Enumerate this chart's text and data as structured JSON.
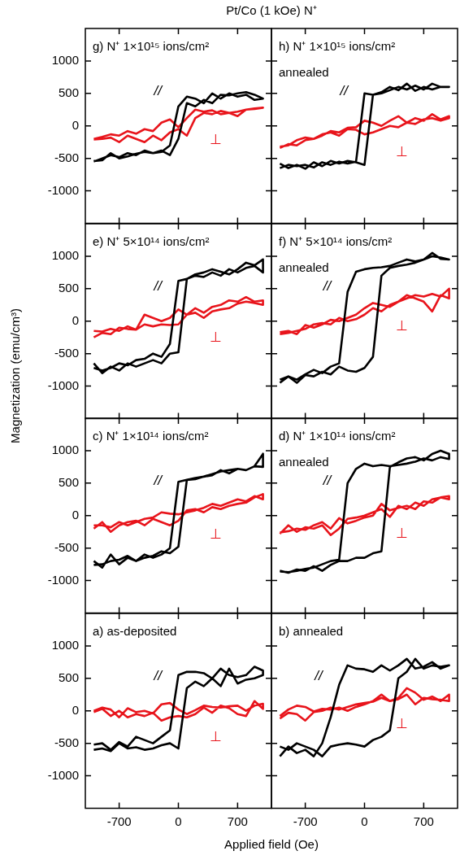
{
  "chart_data": [
    {
      "type": "line",
      "title": "Pt/Co (1 kOe) N⁺",
      "annotations": [
        "g) N⁺ 1×10¹⁵ ions/cm²"
      ],
      "tick_labels": "y",
      "grid": false,
      "legend": false,
      "marker": "none",
      "line_style": "solid",
      "xlim": [
        -1100,
        1100
      ],
      "xticks": [
        -700,
        0,
        700
      ],
      "ylim": [
        -1500,
        1500
      ],
      "yticks": [
        -1000,
        -500,
        0,
        500,
        1000
      ],
      "x": [
        -1000,
        -900,
        -800,
        -700,
        -600,
        -500,
        -400,
        -300,
        -200,
        -100,
        0,
        100,
        200,
        300,
        400,
        500,
        600,
        700,
        800,
        900,
        1000,
        1000,
        900,
        800,
        700,
        600,
        500,
        400,
        300,
        200,
        100,
        0,
        -100,
        -200,
        -300,
        -400,
        -500,
        -600,
        -700,
        -800,
        -900,
        -1000
      ],
      "series": [
        {
          "name": "//",
          "color": "#000000",
          "values": [
            -540,
            -530,
            -420,
            -500,
            -470,
            -430,
            -400,
            -420,
            -380,
            -450,
            -200,
            350,
            300,
            400,
            350,
            480,
            470,
            500,
            520,
            480,
            420,
            420,
            400,
            480,
            450,
            500,
            420,
            500,
            350,
            420,
            450,
            300,
            -300,
            -400,
            -420,
            -380,
            -450,
            -420,
            -480,
            -450,
            -500,
            -550
          ]
        },
        {
          "name": "⊥",
          "color": "#e8141b",
          "values": [
            -210,
            -200,
            -180,
            -250,
            -150,
            -200,
            -250,
            -150,
            -220,
            -100,
            -50,
            -150,
            120,
            200,
            180,
            230,
            200,
            150,
            250,
            270,
            280,
            280,
            260,
            250,
            220,
            200,
            180,
            240,
            220,
            250,
            120,
            -20,
            100,
            50,
            -80,
            -50,
            -120,
            -80,
            -150,
            -130,
            -170,
            -200
          ]
        }
      ]
    },
    {
      "type": "line",
      "annotations": [
        "h) N⁺ 1×10¹⁵ ions/cm²",
        "annealed"
      ],
      "tick_labels": false,
      "grid": false,
      "legend": false,
      "marker": "none",
      "line_style": "solid",
      "xlim": [
        -1100,
        1100
      ],
      "xticks": [
        -700,
        0,
        700
      ],
      "ylim": [
        -1500,
        1500
      ],
      "yticks": [
        -1000,
        -500,
        0,
        500,
        1000
      ],
      "x": [
        -1000,
        -900,
        -800,
        -700,
        -600,
        -500,
        -400,
        -300,
        -200,
        -100,
        0,
        100,
        200,
        300,
        400,
        500,
        600,
        700,
        800,
        900,
        1000,
        1000,
        900,
        800,
        700,
        600,
        500,
        400,
        300,
        200,
        100,
        0,
        -100,
        -200,
        -300,
        -400,
        -500,
        -600,
        -700,
        -800,
        -900,
        -1000
      ],
      "series": [
        {
          "name": "//",
          "color": "#000000",
          "values": [
            -580,
            -650,
            -600,
            -660,
            -560,
            -620,
            -540,
            -580,
            -540,
            -560,
            -600,
            480,
            500,
            550,
            600,
            560,
            620,
            560,
            650,
            600,
            600,
            600,
            600,
            560,
            600,
            540,
            650,
            550,
            600,
            520,
            480,
            500,
            -550,
            -580,
            -550,
            -600,
            -560,
            -640,
            -600,
            -620,
            -600,
            -650
          ]
        },
        {
          "name": "⊥",
          "color": "#e8141b",
          "values": [
            -340,
            -280,
            -300,
            -220,
            -200,
            -130,
            -100,
            -150,
            -50,
            -60,
            -130,
            -100,
            -50,
            0,
            -20,
            50,
            30,
            100,
            120,
            80,
            120,
            150,
            100,
            180,
            80,
            120,
            50,
            150,
            80,
            0,
            50,
            80,
            -20,
            -30,
            -100,
            -80,
            -150,
            -200,
            -180,
            -220,
            -300,
            -320
          ]
        }
      ]
    },
    {
      "type": "line",
      "ylabel": "Magnetization (emu/cm³)",
      "annotations": [
        "e) N⁺ 5×10¹⁴ ions/cm²"
      ],
      "tick_labels": "y",
      "grid": false,
      "legend": false,
      "marker": "none",
      "line_style": "solid",
      "xlim": [
        -1100,
        1100
      ],
      "xticks": [
        -700,
        0,
        700
      ],
      "ylim": [
        -1500,
        1500
      ],
      "yticks": [
        -1000,
        -500,
        0,
        500,
        1000
      ],
      "x": [
        -1000,
        -900,
        -800,
        -700,
        -600,
        -500,
        -400,
        -300,
        -200,
        -100,
        0,
        100,
        200,
        300,
        400,
        500,
        600,
        700,
        800,
        900,
        1000,
        1000,
        900,
        800,
        700,
        600,
        500,
        400,
        300,
        200,
        100,
        0,
        -100,
        -200,
        -300,
        -400,
        -500,
        -600,
        -700,
        -800,
        -900,
        -1000
      ],
      "series": [
        {
          "name": "//",
          "color": "#000000",
          "values": [
            -650,
            -800,
            -700,
            -760,
            -650,
            -700,
            -650,
            -600,
            -650,
            -500,
            -480,
            650,
            700,
            680,
            750,
            700,
            800,
            750,
            820,
            850,
            750,
            950,
            860,
            900,
            800,
            720,
            760,
            800,
            750,
            720,
            650,
            620,
            -350,
            -550,
            -500,
            -580,
            -600,
            -680,
            -650,
            -720,
            -760,
            -720
          ]
        },
        {
          "name": "⊥",
          "color": "#e8141b",
          "values": [
            -250,
            -180,
            -200,
            -100,
            -120,
            -130,
            -50,
            -80,
            -50,
            -60,
            -50,
            100,
            130,
            50,
            150,
            180,
            200,
            270,
            300,
            280,
            250,
            320,
            300,
            370,
            300,
            320,
            250,
            220,
            130,
            200,
            100,
            180,
            50,
            0,
            50,
            100,
            -130,
            -80,
            -150,
            -120,
            -160,
            -150
          ]
        }
      ]
    },
    {
      "type": "line",
      "annotations": [
        "f) N⁺ 5×10¹⁴ ions/cm²",
        "annealed"
      ],
      "tick_labels": false,
      "grid": false,
      "legend": false,
      "marker": "none",
      "line_style": "solid",
      "xlim": [
        -1100,
        1100
      ],
      "xticks": [
        -700,
        0,
        700
      ],
      "ylim": [
        -1500,
        1500
      ],
      "yticks": [
        -1000,
        -500,
        0,
        500,
        1000
      ],
      "x": [
        -1000,
        -900,
        -800,
        -700,
        -600,
        -500,
        -400,
        -300,
        -200,
        -100,
        0,
        100,
        200,
        300,
        400,
        500,
        600,
        700,
        800,
        900,
        1000,
        1000,
        900,
        800,
        700,
        600,
        500,
        400,
        300,
        200,
        100,
        0,
        -100,
        -200,
        -300,
        -400,
        -500,
        -600,
        -700,
        -800,
        -900,
        -1000
      ],
      "series": [
        {
          "name": "//",
          "color": "#000000",
          "values": [
            -950,
            -850,
            -950,
            -830,
            -850,
            -780,
            -820,
            -700,
            -760,
            -780,
            -720,
            -550,
            700,
            820,
            850,
            870,
            900,
            950,
            1050,
            960,
            950,
            950,
            980,
            1000,
            950,
            920,
            950,
            900,
            850,
            830,
            820,
            800,
            760,
            450,
            -650,
            -700,
            -800,
            -750,
            -820,
            -900,
            -850,
            -900
          ]
        },
        {
          "name": "⊥",
          "color": "#e8141b",
          "values": [
            -200,
            -180,
            -150,
            -120,
            -50,
            -30,
            -50,
            50,
            0,
            30,
            100,
            200,
            150,
            250,
            300,
            400,
            350,
            300,
            150,
            400,
            350,
            500,
            380,
            420,
            380,
            400,
            350,
            300,
            220,
            250,
            280,
            200,
            100,
            50,
            0,
            20,
            -50,
            -100,
            -60,
            -200,
            -150,
            -170
          ]
        }
      ]
    },
    {
      "type": "line",
      "annotations": [
        "c) N⁺ 1×10¹⁴ ions/cm²"
      ],
      "tick_labels": "y",
      "grid": false,
      "legend": false,
      "marker": "none",
      "line_style": "solid",
      "xlim": [
        -1100,
        1100
      ],
      "xticks": [
        -700,
        0,
        700
      ],
      "ylim": [
        -1500,
        1500
      ],
      "yticks": [
        -1000,
        -500,
        0,
        500,
        1000
      ],
      "x": [
        -1000,
        -900,
        -800,
        -700,
        -600,
        -500,
        -400,
        -300,
        -200,
        -100,
        0,
        100,
        200,
        300,
        400,
        500,
        600,
        700,
        800,
        900,
        1000,
        1000,
        900,
        800,
        700,
        600,
        500,
        400,
        300,
        200,
        100,
        0,
        -100,
        -200,
        -300,
        -400,
        -500,
        -600,
        -700,
        -800,
        -900,
        -1000
      ],
      "series": [
        {
          "name": "//",
          "color": "#000000",
          "values": [
            -700,
            -800,
            -600,
            -750,
            -650,
            -700,
            -650,
            -620,
            -550,
            -580,
            -480,
            550,
            580,
            600,
            640,
            680,
            700,
            720,
            700,
            760,
            950,
            750,
            760,
            700,
            720,
            650,
            700,
            620,
            600,
            560,
            550,
            520,
            -500,
            -600,
            -650,
            -600,
            -700,
            -620,
            -680,
            -700,
            -750,
            -760
          ]
        },
        {
          "name": "⊥",
          "color": "#e8141b",
          "values": [
            -200,
            -100,
            -250,
            -150,
            -100,
            -80,
            -150,
            -50,
            -100,
            -150,
            -80,
            80,
            100,
            50,
            130,
            100,
            150,
            180,
            200,
            280,
            330,
            250,
            300,
            220,
            250,
            200,
            150,
            180,
            120,
            80,
            50,
            20,
            30,
            50,
            -30,
            -50,
            -100,
            -150,
            -100,
            -180,
            -150,
            -150
          ]
        }
      ]
    },
    {
      "type": "line",
      "annotations": [
        "d) N⁺ 1×10¹⁴ ions/cm²",
        "annealed"
      ],
      "tick_labels": false,
      "grid": false,
      "legend": false,
      "marker": "none",
      "line_style": "solid",
      "xlim": [
        -1100,
        1100
      ],
      "xticks": [
        -700,
        0,
        700
      ],
      "ylim": [
        -1500,
        1500
      ],
      "yticks": [
        -1000,
        -500,
        0,
        500,
        1000
      ],
      "x": [
        -1000,
        -900,
        -800,
        -700,
        -600,
        -500,
        -400,
        -300,
        -200,
        -100,
        0,
        100,
        200,
        300,
        400,
        500,
        600,
        700,
        800,
        900,
        1000,
        1000,
        900,
        800,
        700,
        600,
        500,
        400,
        300,
        200,
        100,
        0,
        -100,
        -200,
        -300,
        -400,
        -500,
        -600,
        -700,
        -800,
        -900,
        -1000
      ],
      "series": [
        {
          "name": "//",
          "color": "#000000",
          "values": [
            -850,
            -880,
            -830,
            -850,
            -780,
            -850,
            -760,
            -700,
            -700,
            -650,
            -650,
            -580,
            -550,
            750,
            820,
            880,
            900,
            850,
            950,
            1000,
            950,
            870,
            900,
            850,
            880,
            830,
            800,
            780,
            760,
            780,
            760,
            800,
            720,
            500,
            -680,
            -700,
            -750,
            -800,
            -820,
            -850,
            -870,
            -860
          ]
        },
        {
          "name": "⊥",
          "color": "#e8141b",
          "values": [
            -280,
            -150,
            -250,
            -180,
            -200,
            -150,
            -300,
            -200,
            -50,
            -30,
            0,
            50,
            100,
            -20,
            150,
            100,
            200,
            150,
            250,
            280,
            300,
            250,
            280,
            200,
            220,
            100,
            150,
            120,
            80,
            180,
            0,
            -30,
            -80,
            -120,
            -40,
            -200,
            -100,
            -150,
            -220,
            -200,
            -240,
            -260
          ]
        }
      ]
    },
    {
      "type": "line",
      "xlabel": "Applied field (Oe)",
      "annotations": [
        "a) as-deposited"
      ],
      "grid": false,
      "legend": false,
      "marker": "none",
      "line_style": "solid",
      "xlim": [
        -1100,
        1100
      ],
      "xticks": [
        -700,
        0,
        700
      ],
      "ylim": [
        -1500,
        1500
      ],
      "yticks": [
        -1000,
        -500,
        0,
        500,
        1000
      ],
      "x": [
        -1000,
        -900,
        -800,
        -700,
        -600,
        -500,
        -400,
        -300,
        -200,
        -100,
        0,
        100,
        200,
        300,
        400,
        500,
        600,
        700,
        800,
        900,
        1000,
        1000,
        900,
        800,
        700,
        600,
        500,
        400,
        300,
        200,
        100,
        0,
        -100,
        -200,
        -300,
        -400,
        -500,
        -600,
        -700,
        -800,
        -900,
        -1000
      ],
      "series": [
        {
          "name": "//",
          "color": "#000000",
          "values": [
            -600,
            -580,
            -620,
            -500,
            -580,
            -560,
            -600,
            -580,
            -530,
            -500,
            -580,
            350,
            450,
            380,
            500,
            380,
            650,
            420,
            480,
            500,
            550,
            620,
            680,
            550,
            520,
            550,
            650,
            500,
            580,
            600,
            600,
            550,
            -300,
            -400,
            -500,
            -450,
            -400,
            -550,
            -480,
            -600,
            -500,
            -520
          ]
        },
        {
          "name": "⊥",
          "color": "#e8141b",
          "values": [
            -20,
            30,
            -80,
            0,
            -100,
            -50,
            -80,
            -30,
            -150,
            -100,
            -80,
            -100,
            -50,
            50,
            -30,
            80,
            40,
            -50,
            -80,
            150,
            30,
            110,
            80,
            0,
            80,
            70,
            50,
            60,
            80,
            10,
            -50,
            20,
            120,
            100,
            -40,
            0,
            -20,
            40,
            -100,
            20,
            50,
            0
          ]
        }
      ]
    },
    {
      "type": "line",
      "annotations": [
        "b) annealed"
      ],
      "tick_labels": "x",
      "grid": false,
      "legend": false,
      "marker": "none",
      "line_style": "solid",
      "xlim": [
        -1100,
        1100
      ],
      "xticks": [
        -700,
        0,
        700
      ],
      "ylim": [
        -1500,
        1500
      ],
      "yticks": [
        -1000,
        -500,
        0,
        500,
        1000
      ],
      "x": [
        -1000,
        -900,
        -800,
        -700,
        -600,
        -500,
        -400,
        -300,
        -200,
        -100,
        0,
        100,
        200,
        300,
        400,
        500,
        600,
        700,
        800,
        900,
        1000,
        1000,
        900,
        800,
        700,
        600,
        500,
        400,
        300,
        200,
        100,
        0,
        -100,
        -200,
        -300,
        -400,
        -500,
        -600,
        -700,
        -800,
        -900,
        -1000
      ],
      "series": [
        {
          "name": "//",
          "color": "#000000",
          "values": [
            -550,
            -600,
            -500,
            -550,
            -600,
            -700,
            -550,
            -520,
            -500,
            -520,
            -550,
            -450,
            -400,
            -300,
            500,
            600,
            800,
            650,
            700,
            680,
            700,
            700,
            650,
            750,
            680,
            650,
            800,
            700,
            620,
            700,
            600,
            640,
            650,
            700,
            400,
            -100,
            -500,
            -700,
            -600,
            -650,
            -550,
            -700
          ]
        },
        {
          "name": "⊥",
          "color": "#e8141b",
          "values": [
            -120,
            -30,
            -50,
            -150,
            -20,
            0,
            50,
            20,
            60,
            100,
            120,
            140,
            200,
            150,
            180,
            250,
            100,
            200,
            180,
            170,
            150,
            250,
            150,
            220,
            170,
            280,
            350,
            200,
            150,
            250,
            150,
            100,
            60,
            0,
            50,
            20,
            30,
            -10,
            60,
            80,
            20,
            -80
          ]
        }
      ]
    }
  ]
}
